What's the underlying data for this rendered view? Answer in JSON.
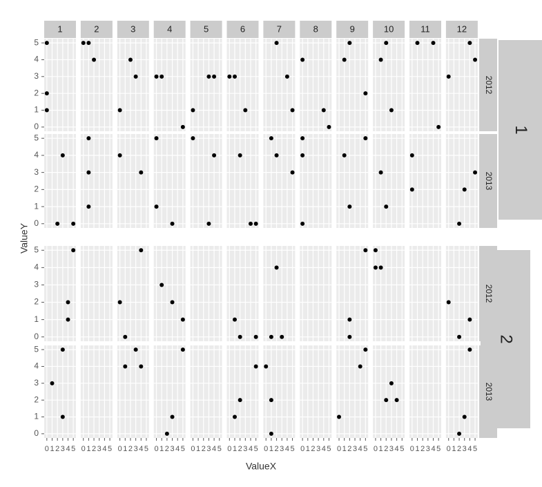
{
  "chart_data": {
    "type": "scatter",
    "xlabel": "ValueX",
    "ylabel": "ValueY",
    "xlim": [
      -0.5,
      5.5
    ],
    "ylim": [
      -0.25,
      5.25
    ],
    "xticks": [
      0,
      1,
      2,
      3,
      4,
      5
    ],
    "yticks": [
      0,
      1,
      2,
      3,
      4,
      5
    ],
    "grid": true,
    "color": "#000000",
    "columns": [
      "1",
      "2",
      "3",
      "4",
      "5",
      "6",
      "7",
      "8",
      "9",
      "10",
      "11",
      "12"
    ],
    "groups": [
      {
        "name": "1",
        "rows": [
          {
            "name": "2012",
            "panels": [
              {
                "x": [
                  0,
                  0,
                  0
                ],
                "y": [
                  5,
                  2,
                  1
                ]
              },
              {
                "x": [
                  0,
                  1,
                  2
                ],
                "y": [
                  5,
                  5,
                  4
                ]
              },
              {
                "x": [
                  0,
                  2,
                  3
                ],
                "y": [
                  1,
                  4,
                  3
                ]
              },
              {
                "x": [
                  0,
                  1,
                  5
                ],
                "y": [
                  3,
                  3,
                  0
                ]
              },
              {
                "x": [
                  0,
                  3,
                  4
                ],
                "y": [
                  1,
                  3,
                  3
                ]
              },
              {
                "x": [
                  0,
                  1,
                  3
                ],
                "y": [
                  3,
                  3,
                  1
                ]
              },
              {
                "x": [
                  2,
                  4,
                  5
                ],
                "y": [
                  5,
                  3,
                  1
                ]
              },
              {
                "x": [
                  0,
                  4,
                  5
                ],
                "y": [
                  4,
                  1,
                  0
                ]
              },
              {
                "x": [
                  1,
                  2,
                  5
                ],
                "y": [
                  4,
                  5,
                  2
                ]
              },
              {
                "x": [
                  1,
                  2,
                  3
                ],
                "y": [
                  4,
                  5,
                  1
                ]
              },
              {
                "x": [
                  1,
                  4,
                  5
                ],
                "y": [
                  5,
                  5,
                  0
                ]
              },
              {
                "x": [
                  0,
                  4,
                  5
                ],
                "y": [
                  3,
                  5,
                  4
                ]
              }
            ]
          },
          {
            "name": "2013",
            "panels": [
              {
                "x": [
                  3,
                  2,
                  5
                ],
                "y": [
                  4,
                  0,
                  0
                ]
              },
              {
                "x": [
                  1,
                  1,
                  1
                ],
                "y": [
                  5,
                  3,
                  1
                ]
              },
              {
                "x": [
                  0,
                  4
                ],
                "y": [
                  4,
                  3
                ]
              },
              {
                "x": [
                  0,
                  0,
                  3
                ],
                "y": [
                  5,
                  1,
                  0
                ]
              },
              {
                "x": [
                  0,
                  3,
                  4
                ],
                "y": [
                  5,
                  0,
                  4
                ]
              },
              {
                "x": [
                  2,
                  4,
                  5
                ],
                "y": [
                  4,
                  0,
                  0
                ]
              },
              {
                "x": [
                  1,
                  2,
                  5
                ],
                "y": [
                  5,
                  4,
                  3
                ]
              },
              {
                "x": [
                  0,
                  0,
                  0
                ],
                "y": [
                  5,
                  4,
                  0
                ]
              },
              {
                "x": [
                  1,
                  2,
                  5
                ],
                "y": [
                  4,
                  1,
                  5
                ]
              },
              {
                "x": [
                  1,
                  2
                ],
                "y": [
                  3,
                  1
                ]
              },
              {
                "x": [
                  0,
                  0
                ],
                "y": [
                  4,
                  2
                ]
              },
              {
                "x": [
                  2,
                  3,
                  5
                ],
                "y": [
                  0,
                  2,
                  3
                ]
              }
            ]
          }
        ]
      },
      {
        "name": "2",
        "rows": [
          {
            "name": "2012",
            "panels": [
              {
                "x": [
                  5,
                  4,
                  4
                ],
                "y": [
                  5,
                  2,
                  1
                ]
              },
              {
                "x": [],
                "y": []
              },
              {
                "x": [
                  0,
                  1,
                  4
                ],
                "y": [
                  2,
                  0,
                  5
                ]
              },
              {
                "x": [
                  1,
                  3,
                  5
                ],
                "y": [
                  3,
                  2,
                  1
                ]
              },
              {
                "x": [],
                "y": []
              },
              {
                "x": [
                  1,
                  2,
                  5
                ],
                "y": [
                  1,
                  0,
                  0
                ]
              },
              {
                "x": [
                  1,
                  2,
                  3
                ],
                "y": [
                  0,
                  4,
                  0
                ]
              },
              {
                "x": [],
                "y": []
              },
              {
                "x": [
                  2,
                  2,
                  5
                ],
                "y": [
                  1,
                  0,
                  5
                ]
              },
              {
                "x": [
                  0,
                  0,
                  1
                ],
                "y": [
                  5,
                  4,
                  4
                ]
              },
              {
                "x": [],
                "y": []
              },
              {
                "x": [
                  0,
                  2,
                  4
                ],
                "y": [
                  2,
                  0,
                  1
                ]
              }
            ]
          },
          {
            "name": "2013",
            "panels": [
              {
                "x": [
                  3,
                  1,
                  3
                ],
                "y": [
                  5,
                  3,
                  1
                ]
              },
              {
                "x": [],
                "y": []
              },
              {
                "x": [
                  1,
                  3,
                  4
                ],
                "y": [
                  4,
                  5,
                  4
                ]
              },
              {
                "x": [
                  2,
                  3,
                  5
                ],
                "y": [
                  0,
                  1,
                  5
                ]
              },
              {
                "x": [],
                "y": []
              },
              {
                "x": [
                  1,
                  2,
                  5
                ],
                "y": [
                  1,
                  2,
                  4
                ]
              },
              {
                "x": [
                  0,
                  1,
                  1
                ],
                "y": [
                  4,
                  2,
                  0
                ]
              },
              {
                "x": [],
                "y": []
              },
              {
                "x": [
                  0,
                  4,
                  5
                ],
                "y": [
                  1,
                  4,
                  5
                ]
              },
              {
                "x": [
                  2,
                  3,
                  4
                ],
                "y": [
                  2,
                  3,
                  2
                ]
              },
              {
                "x": [],
                "y": []
              },
              {
                "x": [
                  2,
                  3,
                  4
                ],
                "y": [
                  0,
                  1,
                  5
                ]
              }
            ]
          }
        ]
      }
    ]
  }
}
